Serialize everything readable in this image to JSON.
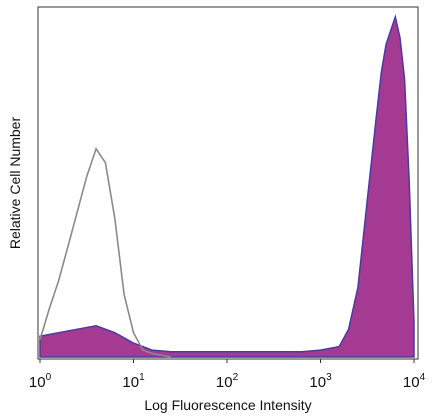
{
  "chart_data": {
    "type": "area",
    "xlabel": "Log Fluorescence Intensity",
    "ylabel": "Relative Cell Number",
    "x_scale": "log",
    "xlim": [
      1,
      10000
    ],
    "ylim": [
      0,
      100
    ],
    "grid": false,
    "x_ticks": [
      {
        "base": "10",
        "exp": "0",
        "value": 1
      },
      {
        "base": "10",
        "exp": "1",
        "value": 10
      },
      {
        "base": "10",
        "exp": "2",
        "value": 100
      },
      {
        "base": "10",
        "exp": "3",
        "value": 1000
      },
      {
        "base": "10",
        "exp": "4",
        "value": 10000
      }
    ],
    "series": [
      {
        "style": "outline",
        "color": "#8a8a8a",
        "x": [
          1.0,
          1.26,
          1.58,
          2.0,
          2.51,
          3.16,
          3.98,
          5.01,
          6.31,
          7.94,
          10.0,
          12.6,
          15.8,
          20.0,
          25.1
        ],
        "y": [
          5,
          14,
          22,
          32,
          42,
          52,
          60,
          56,
          40,
          18,
          7,
          2,
          1,
          0.5,
          0
        ]
      },
      {
        "style": "filled",
        "color": "#a53a92",
        "edge_color": "#4a3aa0",
        "x": [
          1.0,
          1.58,
          2.51,
          3.98,
          6.31,
          10.0,
          15.8,
          25.1,
          39.8,
          63.1,
          100,
          158,
          251,
          398,
          631,
          1000,
          1585,
          2000,
          2512,
          3162,
          3981,
          4467,
          5012,
          5623,
          6310,
          7079,
          7943,
          8913,
          10000
        ],
        "y": [
          6,
          7,
          8,
          9,
          7,
          4,
          2,
          1.5,
          1.5,
          1.5,
          1.5,
          1.5,
          1.5,
          1.5,
          1.5,
          2,
          3,
          8,
          20,
          45,
          70,
          82,
          90,
          94,
          98,
          92,
          80,
          50,
          10
        ]
      }
    ]
  }
}
